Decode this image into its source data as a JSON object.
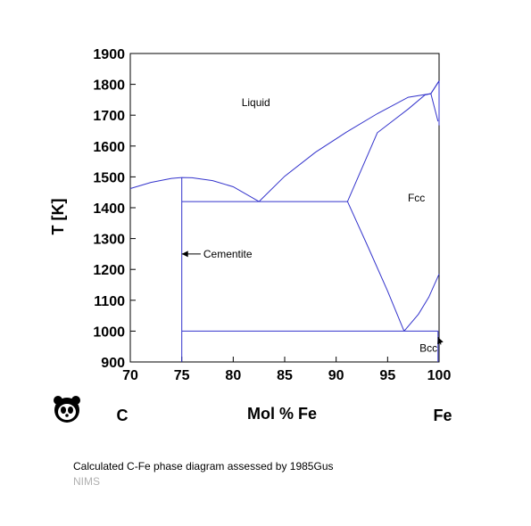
{
  "chart_data": {
    "type": "line",
    "xlabel": "Mol % Fe",
    "ylabel": "T [K]",
    "xlim": [
      70,
      100
    ],
    "ylim": [
      900,
      1900
    ],
    "xticks": [
      70,
      75,
      80,
      85,
      90,
      95,
      100
    ],
    "yticks": [
      900,
      1000,
      1100,
      1200,
      1300,
      1400,
      1500,
      1600,
      1700,
      1800,
      1900
    ],
    "grid": false,
    "line_color": "#3333cc",
    "element_labels": {
      "left": "C",
      "right": "Fe"
    },
    "region_labels": [
      {
        "text": "Liquid",
        "x": 82.2,
        "y": 1730
      },
      {
        "text": "Fcc",
        "x": 97.8,
        "y": 1420
      }
    ],
    "annotations": [
      {
        "text": "Cementite",
        "x": 77.1,
        "y": 1250,
        "arrow_to": [
          75.0,
          1250
        ]
      },
      {
        "text": "Bcc",
        "x": 98.1,
        "y": 945,
        "arrow_to": [
          99.9,
          980
        ]
      }
    ],
    "series": [
      {
        "points": [
          [
            70,
            1462
          ],
          [
            72,
            1482
          ],
          [
            74,
            1495
          ],
          [
            75,
            1498
          ],
          [
            76,
            1497
          ],
          [
            78,
            1488
          ],
          [
            80,
            1468
          ],
          [
            82.5,
            1420
          ]
        ]
      },
      {
        "points": [
          [
            82.5,
            1420
          ],
          [
            85,
            1502
          ],
          [
            88,
            1580
          ],
          [
            91,
            1645
          ],
          [
            94,
            1705
          ],
          [
            97,
            1758
          ],
          [
            99.2,
            1770
          ],
          [
            100,
            1811
          ]
        ]
      },
      {
        "points": [
          [
            75,
            1420
          ],
          [
            91.1,
            1420
          ]
        ]
      },
      {
        "points": [
          [
            91.1,
            1420
          ],
          [
            94,
            1643
          ],
          [
            97,
            1720
          ],
          [
            98.6,
            1765
          ],
          [
            99.2,
            1770
          ]
        ]
      },
      {
        "points": [
          [
            99.2,
            1770
          ],
          [
            100,
            1811
          ]
        ]
      },
      {
        "points": [
          [
            99.2,
            1770
          ],
          [
            99.9,
            1680
          ]
        ]
      },
      {
        "points": [
          [
            100,
            1811
          ],
          [
            100,
            1667
          ]
        ]
      },
      {
        "points": [
          [
            91.1,
            1420
          ],
          [
            93,
            1280
          ],
          [
            95,
            1130
          ],
          [
            96.6,
            1000
          ]
        ]
      },
      {
        "points": [
          [
            96.6,
            1000
          ],
          [
            98,
            1055
          ],
          [
            99,
            1110
          ],
          [
            100,
            1185
          ]
        ]
      },
      {
        "points": [
          [
            75,
            1000
          ],
          [
            99.9,
            1000
          ]
        ]
      },
      {
        "points": [
          [
            75,
            900
          ],
          [
            75,
            1498
          ]
        ]
      },
      {
        "points": [
          [
            99.9,
            900
          ],
          [
            99.9,
            1000
          ]
        ]
      }
    ]
  },
  "caption": "Calculated C-Fe phase diagram assessed by 1985Gus",
  "source": "NIMS",
  "icons": {
    "logo": "panda-icon"
  }
}
